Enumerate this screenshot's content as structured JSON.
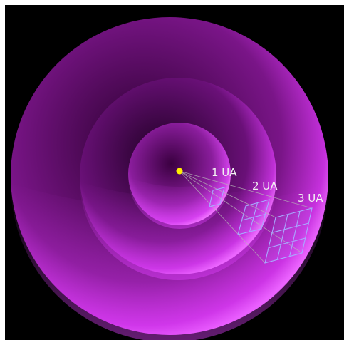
{
  "diagram": {
    "background_color": "#000000",
    "sphere_color": "#e040ff",
    "sun_color": "#ffee00",
    "grid_color": "#a9a9ff",
    "ray_color": "#b8b8b8",
    "labels": {
      "d1": "1 UA",
      "d2": "2 UA",
      "d3": "3 UA"
    },
    "grid_sizes": [
      1,
      2,
      3
    ]
  }
}
